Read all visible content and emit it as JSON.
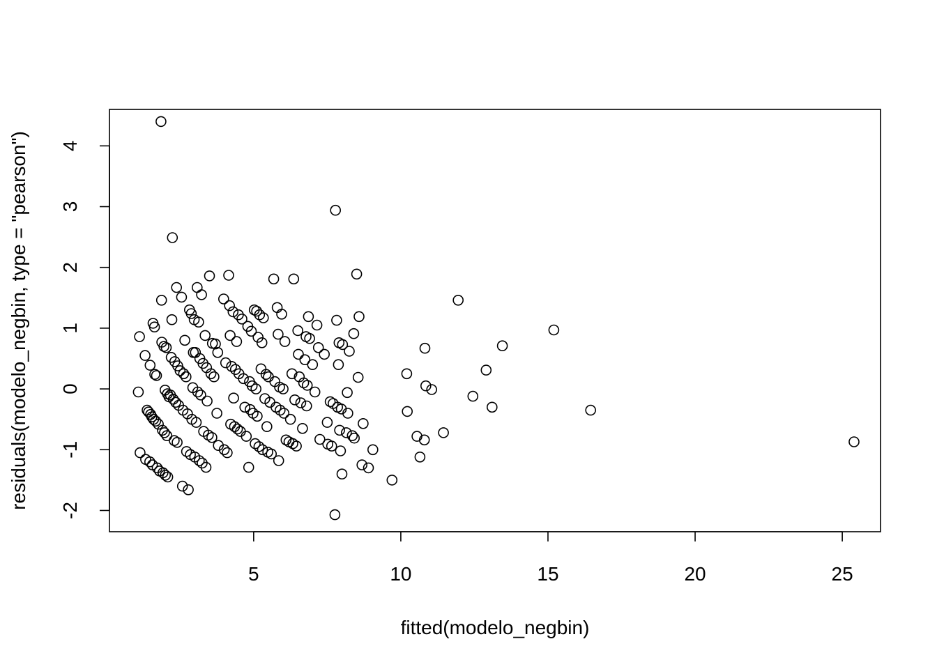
{
  "chart_data": {
    "type": "scatter",
    "title": "",
    "xlabel": "fitted(modelo_negbin)",
    "ylabel": "residuals(modelo_negbin, type = \"pearson\")",
    "xlim": [
      0.1,
      26.3
    ],
    "ylim": [
      -2.35,
      4.6
    ],
    "xticks": [
      5,
      10,
      15,
      20,
      25
    ],
    "yticks": [
      -2,
      -1,
      0,
      1,
      2,
      3,
      4
    ],
    "xtick_labels": [
      "5",
      "10",
      "15",
      "20",
      "25"
    ],
    "ytick_labels": [
      "-2",
      "-1",
      "0",
      "1",
      "2",
      "3",
      "4"
    ],
    "grid": false,
    "marker": "open-circle",
    "points": [
      [
        1.08,
        -0.05
      ],
      [
        1.12,
        0.86
      ],
      [
        1.14,
        -1.05
      ],
      [
        1.33,
        -1.16
      ],
      [
        1.31,
        0.55
      ],
      [
        1.38,
        -0.35
      ],
      [
        1.43,
        -0.38
      ],
      [
        1.47,
        -1.2
      ],
      [
        1.48,
        0.39
      ],
      [
        1.5,
        -0.42
      ],
      [
        1.54,
        -0.46
      ],
      [
        1.56,
        -1.25
      ],
      [
        1.58,
        1.08
      ],
      [
        1.6,
        -0.5
      ],
      [
        1.63,
        1.02
      ],
      [
        1.64,
        0.24
      ],
      [
        1.67,
        -0.53
      ],
      [
        1.7,
        0.22
      ],
      [
        1.72,
        -1.3
      ],
      [
        1.76,
        -0.58
      ],
      [
        1.8,
        -1.35
      ],
      [
        1.85,
        4.4
      ],
      [
        1.87,
        1.46
      ],
      [
        1.88,
        0.77
      ],
      [
        1.9,
        -0.68
      ],
      [
        1.92,
        -1.38
      ],
      [
        1.95,
        0.7
      ],
      [
        1.97,
        -0.72
      ],
      [
        1.99,
        -0.02
      ],
      [
        2.0,
        -1.42
      ],
      [
        2.03,
        0.68
      ],
      [
        2.05,
        -0.77
      ],
      [
        2.07,
        -0.08
      ],
      [
        2.08,
        -1.45
      ],
      [
        2.12,
        -0.13
      ],
      [
        2.17,
        -0.1
      ],
      [
        2.2,
        0.52
      ],
      [
        2.24,
        2.49
      ],
      [
        2.22,
        1.14
      ],
      [
        2.27,
        -0.17
      ],
      [
        2.3,
        -0.85
      ],
      [
        2.32,
        0.45
      ],
      [
        2.35,
        -0.22
      ],
      [
        2.38,
        1.67
      ],
      [
        2.4,
        -0.88
      ],
      [
        2.42,
        0.38
      ],
      [
        2.45,
        -0.27
      ],
      [
        2.5,
        0.3
      ],
      [
        2.55,
        1.51
      ],
      [
        2.58,
        -1.6
      ],
      [
        2.6,
        -0.35
      ],
      [
        2.62,
        0.25
      ],
      [
        2.66,
        0.8
      ],
      [
        2.7,
        0.2
      ],
      [
        2.72,
        -1.03
      ],
      [
        2.75,
        -0.41
      ],
      [
        2.78,
        -1.66
      ],
      [
        2.82,
        1.3
      ],
      [
        2.85,
        -1.08
      ],
      [
        2.88,
        1.24
      ],
      [
        2.9,
        -0.5
      ],
      [
        2.93,
        0.02
      ],
      [
        2.95,
        0.6
      ],
      [
        2.98,
        1.14
      ],
      [
        3.0,
        -1.12
      ],
      [
        3.02,
        0.6
      ],
      [
        3.05,
        -0.55
      ],
      [
        3.08,
        1.67
      ],
      [
        3.1,
        -0.05
      ],
      [
        3.13,
        1.1
      ],
      [
        3.15,
        -1.18
      ],
      [
        3.17,
        0.5
      ],
      [
        3.2,
        -0.1
      ],
      [
        3.23,
        1.55
      ],
      [
        3.25,
        -1.22
      ],
      [
        3.28,
        0.42
      ],
      [
        3.3,
        -0.7
      ],
      [
        3.35,
        0.88
      ],
      [
        3.38,
        -1.29
      ],
      [
        3.4,
        0.35
      ],
      [
        3.42,
        -0.2
      ],
      [
        3.46,
        -0.76
      ],
      [
        3.5,
        1.86
      ],
      [
        3.55,
        0.25
      ],
      [
        3.58,
        -0.8
      ],
      [
        3.6,
        0.75
      ],
      [
        3.65,
        0.2
      ],
      [
        3.7,
        0.74
      ],
      [
        3.75,
        -0.4
      ],
      [
        3.78,
        0.6
      ],
      [
        3.8,
        -0.93
      ],
      [
        3.98,
        1.48
      ],
      [
        4.0,
        -1.0
      ],
      [
        4.05,
        0.43
      ],
      [
        4.1,
        -1.05
      ],
      [
        4.15,
        1.87
      ],
      [
        4.18,
        1.37
      ],
      [
        4.2,
        0.88
      ],
      [
        4.22,
        -0.58
      ],
      [
        4.25,
        0.37
      ],
      [
        4.3,
        1.27
      ],
      [
        4.32,
        -0.15
      ],
      [
        4.35,
        -0.62
      ],
      [
        4.38,
        0.32
      ],
      [
        4.42,
        0.78
      ],
      [
        4.45,
        -0.66
      ],
      [
        4.48,
        1.22
      ],
      [
        4.5,
        0.25
      ],
      [
        4.55,
        -0.7
      ],
      [
        4.6,
        1.15
      ],
      [
        4.65,
        0.17
      ],
      [
        4.7,
        -0.3
      ],
      [
        4.75,
        -0.78
      ],
      [
        4.8,
        1.03
      ],
      [
        4.83,
        -1.29
      ],
      [
        4.86,
        0.12
      ],
      [
        4.88,
        -0.34
      ],
      [
        4.92,
        0.95
      ],
      [
        4.95,
        0.05
      ],
      [
        4.98,
        -0.4
      ],
      [
        5.02,
        1.3
      ],
      [
        5.05,
        -0.9
      ],
      [
        5.08,
        0.0
      ],
      [
        5.1,
        1.28
      ],
      [
        5.12,
        -0.45
      ],
      [
        5.15,
        0.85
      ],
      [
        5.18,
        -0.95
      ],
      [
        5.2,
        1.22
      ],
      [
        5.25,
        0.33
      ],
      [
        5.28,
        0.76
      ],
      [
        5.3,
        -1.0
      ],
      [
        5.33,
        1.17
      ],
      [
        5.38,
        -0.16
      ],
      [
        5.42,
        0.24
      ],
      [
        5.45,
        -0.62
      ],
      [
        5.48,
        -1.04
      ],
      [
        5.5,
        0.2
      ],
      [
        5.55,
        -0.22
      ],
      [
        5.6,
        -1.07
      ],
      [
        5.68,
        1.81
      ],
      [
        5.72,
        0.12
      ],
      [
        5.76,
        -0.3
      ],
      [
        5.8,
        1.34
      ],
      [
        5.83,
        0.9
      ],
      [
        5.85,
        -1.18
      ],
      [
        5.88,
        0.03
      ],
      [
        5.9,
        -0.35
      ],
      [
        5.95,
        1.23
      ],
      [
        6.0,
        0.0
      ],
      [
        6.03,
        -0.4
      ],
      [
        6.06,
        0.78
      ],
      [
        6.1,
        -0.84
      ],
      [
        6.2,
        -0.87
      ],
      [
        6.25,
        -0.5
      ],
      [
        6.3,
        0.25
      ],
      [
        6.33,
        -0.9
      ],
      [
        6.36,
        1.81
      ],
      [
        6.4,
        -0.18
      ],
      [
        6.45,
        -0.94
      ],
      [
        6.5,
        0.96
      ],
      [
        6.52,
        0.57
      ],
      [
        6.55,
        0.2
      ],
      [
        6.6,
        -0.23
      ],
      [
        6.66,
        -0.65
      ],
      [
        6.7,
        0.1
      ],
      [
        6.74,
        0.48
      ],
      [
        6.78,
        0.86
      ],
      [
        6.8,
        -0.28
      ],
      [
        6.82,
        0.06
      ],
      [
        6.86,
        1.19
      ],
      [
        6.9,
        0.83
      ],
      [
        7.0,
        0.4
      ],
      [
        7.08,
        -0.05
      ],
      [
        7.15,
        1.05
      ],
      [
        7.2,
        0.68
      ],
      [
        7.25,
        -0.83
      ],
      [
        7.4,
        0.57
      ],
      [
        7.5,
        -0.55
      ],
      [
        7.52,
        -0.91
      ],
      [
        7.6,
        -0.21
      ],
      [
        7.65,
        -0.94
      ],
      [
        7.7,
        -0.24
      ],
      [
        7.76,
        -2.07
      ],
      [
        7.78,
        2.94
      ],
      [
        7.82,
        1.13
      ],
      [
        7.85,
        -0.3
      ],
      [
        7.88,
        0.4
      ],
      [
        7.9,
        0.76
      ],
      [
        7.92,
        -0.68
      ],
      [
        7.95,
        -1.02
      ],
      [
        7.98,
        -0.33
      ],
      [
        8.0,
        -1.4
      ],
      [
        8.02,
        0.73
      ],
      [
        8.15,
        -0.72
      ],
      [
        8.18,
        -0.06
      ],
      [
        8.2,
        -0.4
      ],
      [
        8.25,
        0.62
      ],
      [
        8.35,
        -0.77
      ],
      [
        8.42,
        -0.81
      ],
      [
        8.5,
        1.89
      ],
      [
        8.55,
        0.19
      ],
      [
        8.58,
        1.19
      ],
      [
        8.4,
        0.91
      ],
      [
        8.68,
        -1.25
      ],
      [
        8.72,
        -0.57
      ],
      [
        8.9,
        -1.3
      ],
      [
        9.05,
        -1.0
      ],
      [
        9.7,
        -1.5
      ],
      [
        10.2,
        0.25
      ],
      [
        10.22,
        -0.37
      ],
      [
        10.55,
        -0.78
      ],
      [
        10.65,
        -1.12
      ],
      [
        10.8,
        -0.84
      ],
      [
        10.82,
        0.67
      ],
      [
        10.85,
        0.05
      ],
      [
        11.05,
        -0.01
      ],
      [
        11.45,
        -0.72
      ],
      [
        11.95,
        1.46
      ],
      [
        12.45,
        -0.12
      ],
      [
        12.9,
        0.31
      ],
      [
        13.1,
        -0.3
      ],
      [
        13.45,
        0.71
      ],
      [
        15.2,
        0.97
      ],
      [
        16.45,
        -0.35
      ],
      [
        25.4,
        -0.87
      ]
    ]
  }
}
